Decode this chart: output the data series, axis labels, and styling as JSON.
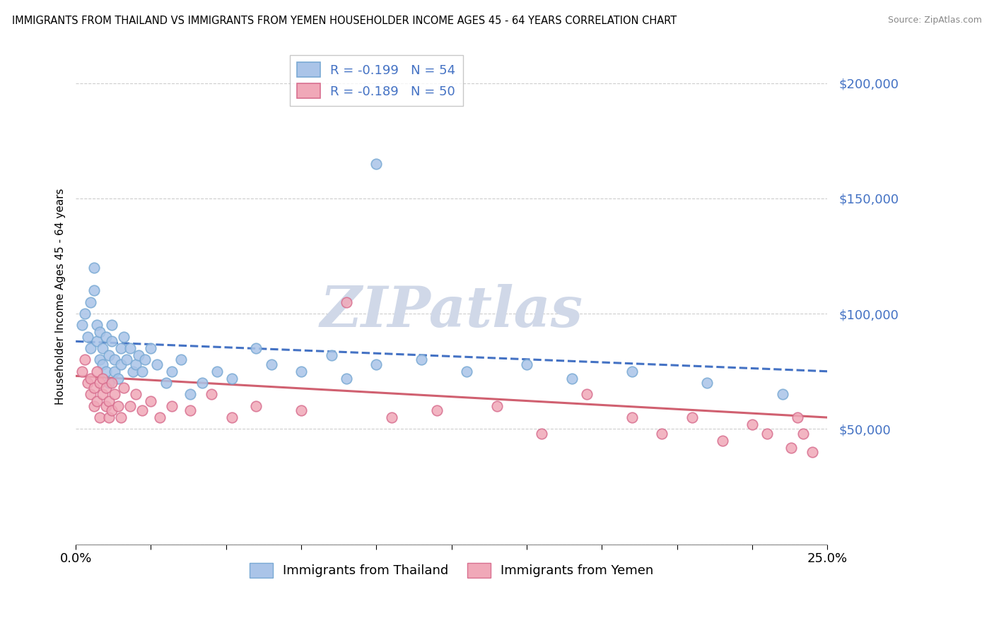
{
  "title": "IMMIGRANTS FROM THAILAND VS IMMIGRANTS FROM YEMEN HOUSEHOLDER INCOME AGES 45 - 64 YEARS CORRELATION CHART",
  "source": "Source: ZipAtlas.com",
  "ylabel": "Householder Income Ages 45 - 64 years",
  "yticks": [
    0,
    50000,
    100000,
    150000,
    200000
  ],
  "ytick_labels": [
    "",
    "$50,000",
    "$100,000",
    "$150,000",
    "$200,000"
  ],
  "xmin": 0.0,
  "xmax": 0.25,
  "ymin": 20000,
  "ymax": 215000,
  "thailand_color": "#aac4e8",
  "thailand_edge": "#7aaad4",
  "yemen_color": "#f0a8b8",
  "yemen_edge": "#d87090",
  "thailand_line_color": "#4472c4",
  "yemen_line_color": "#d06070",
  "watermark_color": "#d0d8e8",
  "legend_label_color": "#4472c4",
  "thailand_scatter_x": [
    0.002,
    0.003,
    0.004,
    0.005,
    0.005,
    0.006,
    0.006,
    0.007,
    0.007,
    0.008,
    0.008,
    0.009,
    0.009,
    0.01,
    0.01,
    0.011,
    0.011,
    0.012,
    0.012,
    0.013,
    0.013,
    0.014,
    0.015,
    0.015,
    0.016,
    0.017,
    0.018,
    0.019,
    0.02,
    0.021,
    0.022,
    0.023,
    0.025,
    0.027,
    0.03,
    0.032,
    0.035,
    0.038,
    0.042,
    0.047,
    0.052,
    0.06,
    0.065,
    0.075,
    0.085,
    0.09,
    0.1,
    0.115,
    0.13,
    0.15,
    0.165,
    0.185,
    0.21,
    0.235
  ],
  "thailand_scatter_y": [
    95000,
    100000,
    90000,
    85000,
    105000,
    110000,
    120000,
    95000,
    88000,
    92000,
    80000,
    85000,
    78000,
    90000,
    75000,
    82000,
    70000,
    88000,
    95000,
    80000,
    75000,
    72000,
    85000,
    78000,
    90000,
    80000,
    85000,
    75000,
    78000,
    82000,
    75000,
    80000,
    85000,
    78000,
    70000,
    75000,
    80000,
    65000,
    70000,
    75000,
    72000,
    85000,
    78000,
    75000,
    82000,
    72000,
    78000,
    80000,
    75000,
    78000,
    72000,
    75000,
    70000,
    65000
  ],
  "yemen_scatter_x": [
    0.002,
    0.003,
    0.004,
    0.005,
    0.005,
    0.006,
    0.006,
    0.007,
    0.007,
    0.008,
    0.008,
    0.009,
    0.009,
    0.01,
    0.01,
    0.011,
    0.011,
    0.012,
    0.012,
    0.013,
    0.014,
    0.015,
    0.016,
    0.018,
    0.02,
    0.022,
    0.025,
    0.028,
    0.032,
    0.038,
    0.045,
    0.052,
    0.06,
    0.075,
    0.09,
    0.105,
    0.12,
    0.14,
    0.155,
    0.17,
    0.185,
    0.195,
    0.205,
    0.215,
    0.225,
    0.23,
    0.238,
    0.24,
    0.242,
    0.245
  ],
  "yemen_scatter_y": [
    75000,
    80000,
    70000,
    65000,
    72000,
    68000,
    60000,
    75000,
    62000,
    70000,
    55000,
    65000,
    72000,
    60000,
    68000,
    55000,
    62000,
    70000,
    58000,
    65000,
    60000,
    55000,
    68000,
    60000,
    65000,
    58000,
    62000,
    55000,
    60000,
    58000,
    65000,
    55000,
    60000,
    58000,
    105000,
    55000,
    58000,
    60000,
    48000,
    65000,
    55000,
    48000,
    55000,
    45000,
    52000,
    48000,
    42000,
    55000,
    48000,
    40000
  ],
  "line_th_x0": 0.0,
  "line_th_x1": 0.25,
  "line_th_y0": 88000,
  "line_th_y1": 75000,
  "line_ye_x0": 0.0,
  "line_ye_x1": 0.25,
  "line_ye_y0": 73000,
  "line_ye_y1": 55000
}
